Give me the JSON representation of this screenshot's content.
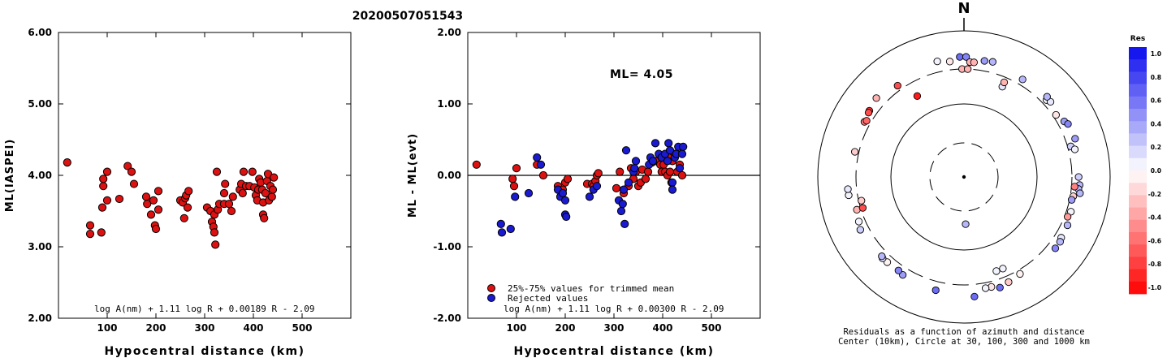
{
  "title": "20200507051543",
  "chart_data": [
    {
      "type": "scatter",
      "ylabel": "ML(IASPEI)",
      "xlabel": "Hypocentral distance (km)",
      "xlim": [
        0,
        600
      ],
      "ylim": [
        2.0,
        6.0
      ],
      "xticks": [
        {
          "v": 100,
          "label": "100"
        },
        {
          "v": 200,
          "label": "200"
        },
        {
          "v": 300,
          "label": "300"
        },
        {
          "v": 400,
          "label": "400"
        },
        {
          "v": 500,
          "label": "500"
        }
      ],
      "yticks": [
        {
          "v": 2,
          "label": "2.00"
        },
        {
          "v": 3,
          "label": "3.00"
        },
        {
          "v": 4,
          "label": "4.00"
        },
        {
          "v": 5,
          "label": "5.00"
        },
        {
          "v": 6,
          "label": "6.00"
        }
      ],
      "formula": "log A(nm) + 1.11 log R + 0.00189 R - 2.09",
      "series": [
        {
          "color": "#dd1111",
          "points": [
            [
              18,
              4.18
            ],
            [
              65,
              3.3
            ],
            [
              65,
              3.18
            ],
            [
              88,
              3.2
            ],
            [
              90,
              3.55
            ],
            [
              92,
              3.85
            ],
            [
              92,
              3.95
            ],
            [
              100,
              4.05
            ],
            [
              100,
              3.65
            ],
            [
              125,
              3.67
            ],
            [
              142,
              4.13
            ],
            [
              150,
              4.05
            ],
            [
              155,
              3.88
            ],
            [
              180,
              3.7
            ],
            [
              182,
              3.6
            ],
            [
              190,
              3.45
            ],
            [
              195,
              3.65
            ],
            [
              198,
              3.3
            ],
            [
              200,
              3.25
            ],
            [
              205,
              3.78
            ],
            [
              205,
              3.52
            ],
            [
              250,
              3.65
            ],
            [
              255,
              3.62
            ],
            [
              258,
              3.4
            ],
            [
              260,
              3.68
            ],
            [
              262,
              3.72
            ],
            [
              265,
              3.55
            ],
            [
              267,
              3.78
            ],
            [
              305,
              3.55
            ],
            [
              312,
              3.5
            ],
            [
              315,
              3.35
            ],
            [
              318,
              3.28
            ],
            [
              320,
              3.45
            ],
            [
              320,
              3.2
            ],
            [
              322,
              3.03
            ],
            [
              325,
              4.05
            ],
            [
              327,
              3.52
            ],
            [
              330,
              3.6
            ],
            [
              340,
              3.75
            ],
            [
              340,
              3.6
            ],
            [
              342,
              3.88
            ],
            [
              350,
              3.6
            ],
            [
              355,
              3.5
            ],
            [
              358,
              3.7
            ],
            [
              372,
              3.8
            ],
            [
              375,
              3.88
            ],
            [
              378,
              3.75
            ],
            [
              380,
              4.05
            ],
            [
              385,
              3.85
            ],
            [
              392,
              3.85
            ],
            [
              398,
              4.05
            ],
            [
              402,
              3.83
            ],
            [
              405,
              3.72
            ],
            [
              408,
              3.65
            ],
            [
              410,
              3.8
            ],
            [
              412,
              3.95
            ],
            [
              415,
              3.9
            ],
            [
              418,
              3.8
            ],
            [
              420,
              3.62
            ],
            [
              420,
              3.45
            ],
            [
              422,
              3.4
            ],
            [
              425,
              3.75
            ],
            [
              428,
              3.92
            ],
            [
              430,
              4.02
            ],
            [
              432,
              3.65
            ],
            [
              435,
              3.85
            ],
            [
              438,
              3.7
            ],
            [
              440,
              3.8
            ],
            [
              442,
              3.97
            ]
          ]
        }
      ]
    },
    {
      "type": "scatter",
      "ylabel": "ML - ML(evt)",
      "xlabel": "Hypocentral distance (km)",
      "xlim": [
        0,
        600
      ],
      "ylim": [
        -2.0,
        2.0
      ],
      "xticks": [
        {
          "v": 100,
          "label": "100"
        },
        {
          "v": 200,
          "label": "200"
        },
        {
          "v": 300,
          "label": "300"
        },
        {
          "v": 400,
          "label": "400"
        },
        {
          "v": 500,
          "label": "500"
        }
      ],
      "yticks": [
        {
          "v": -2,
          "label": "-2.00"
        },
        {
          "v": -1,
          "label": "-1.00"
        },
        {
          "v": 0,
          "label": "0.00"
        },
        {
          "v": 1,
          "label": "1.00"
        },
        {
          "v": 2,
          "label": "2.00"
        }
      ],
      "annotation": "ML= 4.05",
      "legend": [
        {
          "color": "#dd1111",
          "label": "25%-75% values for trimmed mean"
        },
        {
          "color": "#1a1ad0",
          "label": "Rejected values"
        }
      ],
      "formula": "log A(nm) + 1.11 log R + 0.00300 R - 2.09",
      "series": [
        {
          "color": "#dd1111",
          "points": [
            [
              18,
              0.15
            ],
            [
              92,
              -0.05
            ],
            [
              95,
              -0.15
            ],
            [
              100,
              0.1
            ],
            [
              142,
              0.15
            ],
            [
              155,
              0.0
            ],
            [
              185,
              -0.15
            ],
            [
              195,
              -0.2
            ],
            [
              200,
              -0.1
            ],
            [
              205,
              -0.05
            ],
            [
              245,
              -0.12
            ],
            [
              255,
              -0.12
            ],
            [
              258,
              -0.15
            ],
            [
              262,
              -0.08
            ],
            [
              265,
              0.0
            ],
            [
              268,
              0.03
            ],
            [
              305,
              -0.18
            ],
            [
              312,
              0.05
            ],
            [
              320,
              -0.25
            ],
            [
              330,
              -0.15
            ],
            [
              335,
              0.1
            ],
            [
              340,
              -0.05
            ],
            [
              345,
              0.05
            ],
            [
              350,
              -0.15
            ],
            [
              355,
              -0.1
            ],
            [
              358,
              0.08
            ],
            [
              365,
              -0.05
            ],
            [
              370,
              0.05
            ],
            [
              378,
              0.18
            ],
            [
              385,
              0.2
            ],
            [
              395,
              0.15
            ],
            [
              398,
              0.05
            ],
            [
              402,
              0.15
            ],
            [
              405,
              0.05
            ],
            [
              410,
              0.0
            ],
            [
              412,
              0.25
            ],
            [
              415,
              0.05
            ],
            [
              418,
              -0.1
            ],
            [
              420,
              0.2
            ],
            [
              425,
              0.3
            ],
            [
              430,
              0.05
            ],
            [
              435,
              0.15
            ],
            [
              440,
              0.0
            ]
          ]
        },
        {
          "color": "#1a1ad0",
          "points": [
            [
              68,
              -0.68
            ],
            [
              70,
              -0.8
            ],
            [
              88,
              -0.75
            ],
            [
              97,
              -0.3
            ],
            [
              125,
              -0.25
            ],
            [
              142,
              0.25
            ],
            [
              150,
              0.15
            ],
            [
              185,
              -0.2
            ],
            [
              190,
              -0.3
            ],
            [
              195,
              -0.25
            ],
            [
              200,
              -0.35
            ],
            [
              200,
              -0.55
            ],
            [
              202,
              -0.58
            ],
            [
              250,
              -0.3
            ],
            [
              258,
              -0.2
            ],
            [
              265,
              -0.15
            ],
            [
              310,
              -0.35
            ],
            [
              315,
              -0.5
            ],
            [
              318,
              -0.4
            ],
            [
              320,
              -0.2
            ],
            [
              322,
              -0.68
            ],
            [
              325,
              0.35
            ],
            [
              330,
              -0.1
            ],
            [
              340,
              0.05
            ],
            [
              342,
              0.1
            ],
            [
              345,
              0.2
            ],
            [
              372,
              0.15
            ],
            [
              375,
              0.25
            ],
            [
              380,
              0.2
            ],
            [
              385,
              0.45
            ],
            [
              392,
              0.3
            ],
            [
              398,
              0.25
            ],
            [
              405,
              0.3
            ],
            [
              410,
              0.2
            ],
            [
              412,
              0.45
            ],
            [
              415,
              0.35
            ],
            [
              420,
              -0.1
            ],
            [
              420,
              -0.2
            ],
            [
              425,
              0.25
            ],
            [
              428,
              0.3
            ],
            [
              432,
              0.4
            ],
            [
              435,
              0.1
            ],
            [
              440,
              0.3
            ],
            [
              442,
              0.4
            ]
          ]
        }
      ]
    },
    {
      "type": "scatter",
      "subtype": "polar-residuals",
      "north_label": "N",
      "caption_line1": "Residuals as a function of azimuth and distance",
      "caption_line2": "Center (10km), Circle at 30, 100, 300 and 1000 km",
      "rings_km": [
        30,
        100,
        300,
        1000
      ],
      "colorbar": {
        "title": "Res",
        "range": [
          -1.0,
          1.0
        ],
        "labels": [
          "1.0",
          "0.8",
          "0.6",
          "0.4",
          "0.2",
          "0.0",
          "-0.2",
          "-0.4",
          "-0.6",
          "-0.8",
          "-1.0"
        ],
        "positive_color": "#0a0aee",
        "negative_color": "#ff0000"
      },
      "points": [
        {
          "az": -13,
          "dist": 420,
          "res": 0.05
        },
        {
          "az": -2,
          "dist": 440,
          "res": 0.6
        },
        {
          "az": 1,
          "dist": 440,
          "res": 0.5
        },
        {
          "az": 10,
          "dist": 410,
          "res": 0.4
        },
        {
          "az": 14,
          "dist": 420,
          "res": 0.3
        },
        {
          "az": -7,
          "dist": 390,
          "res": -0.1
        },
        {
          "az": 3,
          "dist": 375,
          "res": -0.3
        },
        {
          "az": 5,
          "dist": 375,
          "res": -0.3
        },
        {
          "az": -1,
          "dist": 300,
          "res": -0.3
        },
        {
          "az": 2,
          "dist": 300,
          "res": -0.3
        },
        {
          "az": -36,
          "dist": 350,
          "res": -0.7
        },
        {
          "az": -48,
          "dist": 410,
          "res": -0.3
        },
        {
          "az": -55,
          "dist": 380,
          "res": -0.8
        },
        {
          "az": -56,
          "dist": 375,
          "res": -0.7
        },
        {
          "az": -30,
          "dist": 190,
          "res": -0.9
        },
        {
          "az": 23,
          "dist": 220,
          "res": 0.1
        },
        {
          "az": 23,
          "dist": 255,
          "res": -0.3
        },
        {
          "az": 31,
          "dist": 360,
          "res": 0.3
        },
        {
          "az": 47,
          "dist": 350,
          "res": 0.05
        },
        {
          "az": 49,
          "dist": 370,
          "res": 0.1
        },
        {
          "az": 46,
          "dist": 380,
          "res": 0.3
        },
        {
          "az": 56,
          "dist": 330,
          "res": -0.1
        },
        {
          "az": 61,
          "dist": 370,
          "res": 0.4
        },
        {
          "az": 63,
          "dist": 395,
          "res": 0.5
        },
        {
          "az": 71,
          "dist": 405,
          "res": 0.4
        },
        {
          "az": 74,
          "dist": 330,
          "res": 0.2
        },
        {
          "az": 76,
          "dist": 365,
          "res": 0.05
        },
        {
          "az": 90,
          "dist": 370,
          "res": 0.2
        },
        {
          "az": 94,
          "dist": 385,
          "res": 0.3
        },
        {
          "az": 96,
          "dist": 375,
          "res": 0.3
        },
        {
          "az": 98,
          "dist": 400,
          "res": 0.3
        },
        {
          "az": 95,
          "dist": 330,
          "res": -0.5
        },
        {
          "az": 100,
          "dist": 330,
          "res": -0.2
        },
        {
          "az": 102,
          "dist": 320,
          "res": 0.4
        },
        {
          "az": 108,
          "dist": 345,
          "res": 0.05
        },
        {
          "az": 111,
          "dist": 330,
          "res": -0.4
        },
        {
          "az": 115,
          "dist": 365,
          "res": 0.3
        },
        {
          "az": 122,
          "dist": 370,
          "res": 0.1
        },
        {
          "az": 124,
          "dist": 385,
          "res": 0.3
        },
        {
          "az": 128,
          "dist": 385,
          "res": 0.5
        },
        {
          "az": 150,
          "dist": 340,
          "res": -0.05
        },
        {
          "az": 157,
          "dist": 365,
          "res": -0.2
        },
        {
          "az": 162,
          "dist": 390,
          "res": 0.6
        },
        {
          "az": 166,
          "dist": 355,
          "res": -0.1
        },
        {
          "az": 169,
          "dist": 355,
          "res": 0.05
        },
        {
          "az": 157,
          "dist": 230,
          "res": 0.05
        },
        {
          "az": 161,
          "dist": 230,
          "res": 0.05
        },
        {
          "az": 175,
          "dist": 440,
          "res": 0.6
        },
        {
          "az": -166,
          "dist": 395,
          "res": 0.6
        },
        {
          "az": -148,
          "dist": 380,
          "res": 0.4
        },
        {
          "az": -145,
          "dist": 365,
          "res": 0.5
        },
        {
          "az": -138,
          "dist": 370,
          "res": -0.05
        },
        {
          "az": -135,
          "dist": 375,
          "res": 0.1
        },
        {
          "az": -134,
          "dist": 365,
          "res": 0.3
        },
        {
          "az": -117,
          "dist": 390,
          "res": 0.2
        },
        {
          "az": -113,
          "dist": 365,
          "res": 0.05
        },
        {
          "az": -107,
          "dist": 340,
          "res": -0.3
        },
        {
          "az": -99,
          "dist": 395,
          "res": 0.05
        },
        {
          "az": -96,
          "dist": 395,
          "res": 0.1
        },
        {
          "az": -107,
          "dist": 280,
          "res": -0.7
        },
        {
          "az": -103,
          "dist": 275,
          "res": -0.2
        },
        {
          "az": -77,
          "dist": 340,
          "res": -0.2
        },
        {
          "az": -61,
          "dist": 360,
          "res": -0.5
        },
        {
          "az": -60,
          "dist": 345,
          "res": -0.6
        },
        {
          "az": 178,
          "dist": 45,
          "res": 0.3
        }
      ]
    }
  ]
}
